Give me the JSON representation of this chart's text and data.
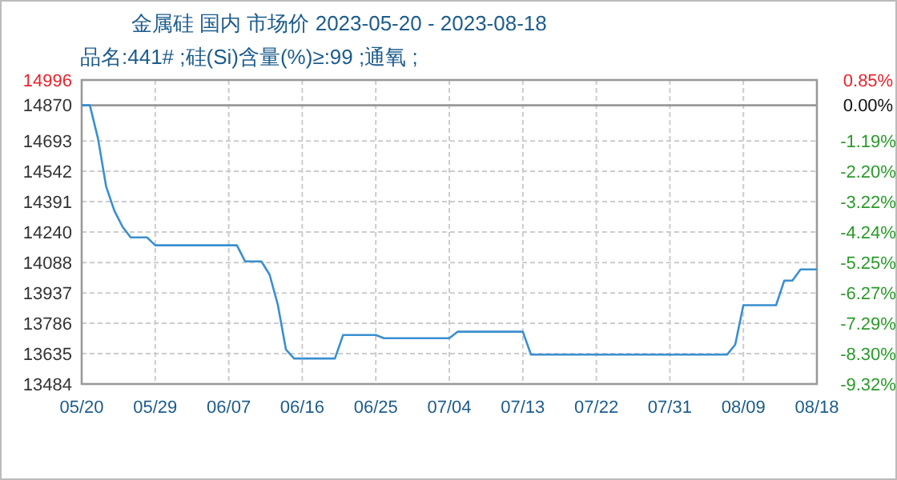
{
  "chart_data": {
    "type": "line",
    "title": "金属硅 国内 市场价 2023-05-20 - 2023-08-18",
    "subtitle": "品名:441# ;硅(Si)含量(%)≥:99 ;通氧 ;",
    "x": [
      "2023-05-20",
      "2023-05-21",
      "2023-05-22",
      "2023-05-23",
      "2023-05-24",
      "2023-05-25",
      "2023-05-26",
      "2023-05-28",
      "2023-05-29",
      "2023-06-08",
      "2023-06-09",
      "2023-06-11",
      "2023-06-12",
      "2023-06-13",
      "2023-06-14",
      "2023-06-15",
      "2023-06-20",
      "2023-06-21",
      "2023-06-25",
      "2023-06-26",
      "2023-07-04",
      "2023-07-05",
      "2023-07-13",
      "2023-07-14",
      "2023-08-07",
      "2023-08-08",
      "2023-08-09",
      "2023-08-10",
      "2023-08-13",
      "2023-08-14",
      "2023-08-15",
      "2023-08-16",
      "2023-08-18"
    ],
    "series": [
      {
        "color": "#3a8fd0",
        "values": [
          14870,
          14870,
          14704,
          14465,
          14346,
          14266,
          14213,
          14213,
          14174,
          14174,
          14094,
          14094,
          14028,
          13880,
          13656,
          13611,
          13611,
          13728,
          13728,
          13712,
          13712,
          13744,
          13744,
          13630,
          13630,
          13680,
          13876,
          13876,
          13876,
          13998,
          13998,
          14054,
          14054
        ]
      }
    ],
    "xlim": [
      "2023-05-20",
      "2023-08-18"
    ],
    "xticks": [
      {
        "value": "2023-05-20",
        "label": "05/20"
      },
      {
        "value": "2023-05-29",
        "label": "05/29"
      },
      {
        "value": "2023-06-07",
        "label": "06/07"
      },
      {
        "value": "2023-06-16",
        "label": "06/16"
      },
      {
        "value": "2023-06-25",
        "label": "06/25"
      },
      {
        "value": "2023-07-04",
        "label": "07/04"
      },
      {
        "value": "2023-07-13",
        "label": "07/13"
      },
      {
        "value": "2023-07-22",
        "label": "07/22"
      },
      {
        "value": "2023-07-31",
        "label": "07/31"
      },
      {
        "value": "2023-08-09",
        "label": "08/09"
      },
      {
        "value": "2023-08-18",
        "label": "08/18"
      }
    ],
    "ylim": [
      13484,
      14996
    ],
    "yticks": [
      13484,
      13635,
      13786,
      13937,
      14088,
      14240,
      14391,
      14542,
      14693,
      14870,
      14996
    ],
    "y2lim": [
      -9.32,
      0.85
    ],
    "y2ticks": [
      {
        "value": -9.32,
        "label": "-9.32%"
      },
      {
        "value": -8.3,
        "label": "-8.30%"
      },
      {
        "value": -7.29,
        "label": "-7.29%"
      },
      {
        "value": -6.27,
        "label": "-6.27%"
      },
      {
        "value": -5.25,
        "label": "-5.25%"
      },
      {
        "value": -4.24,
        "label": "-4.24%"
      },
      {
        "value": -3.22,
        "label": "-3.22%"
      },
      {
        "value": -2.2,
        "label": "-2.20%"
      },
      {
        "value": -1.19,
        "label": "-1.19%"
      },
      {
        "value": 0,
        "label": "0.00%"
      },
      {
        "value": 0.85,
        "label": "0.85%"
      }
    ],
    "ref_lines": [
      {
        "axis": "y",
        "value": 14870,
        "color": "#999999"
      }
    ],
    "grid": true,
    "line_style": "solid",
    "marker": "none"
  }
}
